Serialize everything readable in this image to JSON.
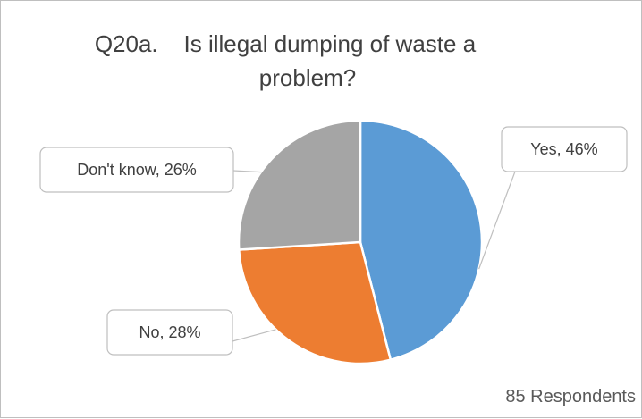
{
  "chart_data": {
    "type": "pie",
    "title": "Q20a.    Is illegal dumping of waste a problem?",
    "title_lines": [
      "Q20a.    Is illegal dumping of waste a",
      "problem?"
    ],
    "slices": [
      {
        "name": "Yes",
        "value": 46,
        "color": "#5b9bd5",
        "label": "Yes, 46%"
      },
      {
        "name": "No",
        "value": 28,
        "color": "#ed7d31",
        "label": "No, 28%"
      },
      {
        "name": "Don't know",
        "value": 26,
        "color": "#a5a5a5",
        "label": "Don't know, 26%"
      }
    ],
    "unit": "%",
    "legend": "none",
    "footnote": "85 Respondents"
  }
}
